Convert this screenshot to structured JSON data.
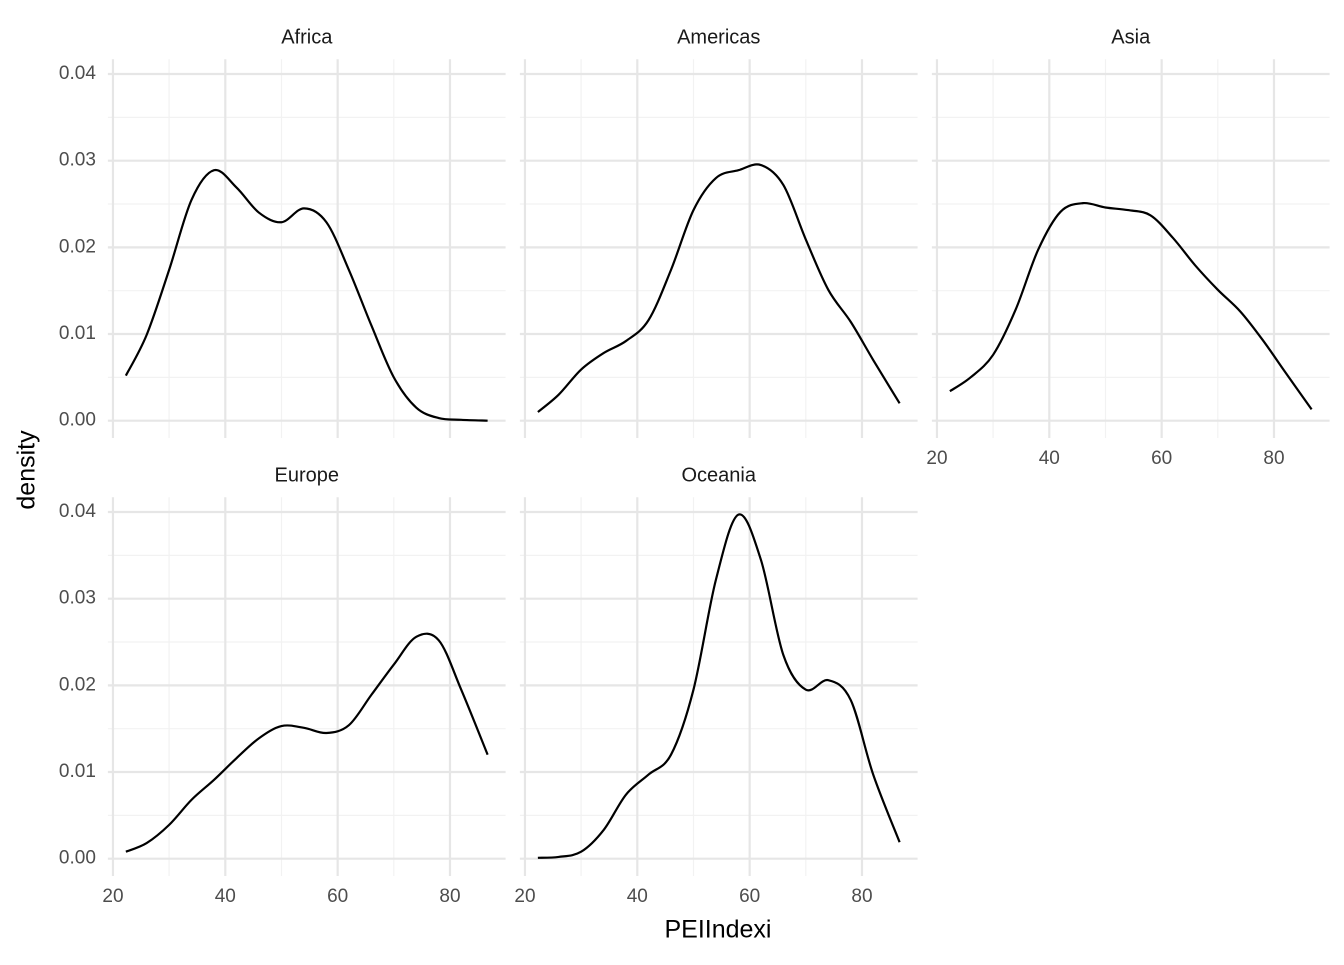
{
  "chart_data": {
    "type": "line",
    "xlabel": "PEIIndexi",
    "ylabel": "density",
    "color": "#000000",
    "grid": true,
    "xlim": [
      19.1,
      89.9
    ],
    "ylim": [
      -0.002,
      0.0417
    ],
    "xticks": [
      20,
      40,
      60,
      80
    ],
    "yticks": [
      {
        "value": 0,
        "label": "0.00"
      },
      {
        "value": 0.01,
        "label": "0.01"
      },
      {
        "value": 0.02,
        "label": "0.02"
      },
      {
        "value": 0.03,
        "label": "0.03"
      },
      {
        "value": 0.04,
        "label": "0.04"
      }
    ],
    "xminor": [
      30,
      50,
      70
    ],
    "yminor": [
      0.005,
      0.015,
      0.025,
      0.035
    ],
    "x": [
      22.3,
      26,
      30,
      34,
      38,
      42,
      46,
      50,
      54,
      58,
      62,
      66,
      70,
      74,
      78,
      82,
      86.7
    ],
    "panels": [
      {
        "title": "Africa",
        "values": [
          0.0052,
          0.0099,
          0.0174,
          0.0255,
          0.0289,
          0.0269,
          0.024,
          0.0229,
          0.0245,
          0.0229,
          0.0174,
          0.011,
          0.005,
          0.0015,
          0.0003,
          0.0001,
          0
        ]
      },
      {
        "title": "Americas",
        "values": [
          0.001,
          0.003,
          0.0059,
          0.0078,
          0.0092,
          0.0116,
          0.0174,
          0.0243,
          0.028,
          0.0289,
          0.0295,
          0.0272,
          0.0209,
          0.0151,
          0.0114,
          0.007,
          0.002
        ]
      },
      {
        "title": "Asia",
        "values": [
          0.0034,
          0.005,
          0.0076,
          0.0128,
          0.0197,
          0.0241,
          0.0251,
          0.0246,
          0.0243,
          0.0237,
          0.0211,
          0.0179,
          0.0151,
          0.0126,
          0.0093,
          0.0056,
          0.0013
        ]
      },
      {
        "title": "Europe",
        "values": [
          0.0008,
          0.0018,
          0.0039,
          0.0068,
          0.0091,
          0.0116,
          0.0139,
          0.0153,
          0.0151,
          0.0145,
          0.0154,
          0.0189,
          0.0224,
          0.0256,
          0.0252,
          0.0195,
          0.012
        ]
      },
      {
        "title": "Oceania",
        "values": [
          0.0001,
          0.0002,
          0.0008,
          0.0033,
          0.0074,
          0.0097,
          0.012,
          0.0195,
          0.0322,
          0.0397,
          0.0345,
          0.0235,
          0.0195,
          0.0206,
          0.0183,
          0.0097,
          0.0019
        ]
      }
    ]
  }
}
